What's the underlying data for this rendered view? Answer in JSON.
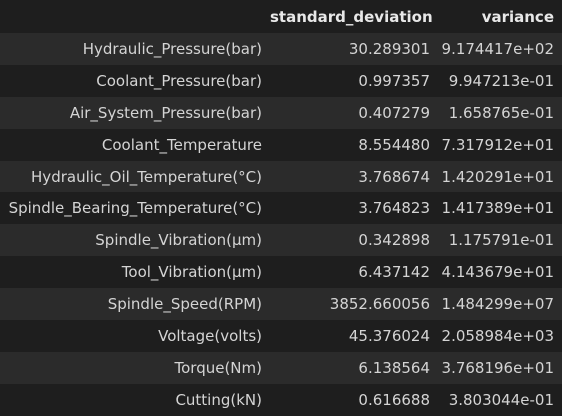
{
  "table": {
    "corner": "",
    "columns": [
      "standard_deviation",
      "variance"
    ],
    "rows": [
      {
        "label": "Hydraulic_Pressure(bar)",
        "std": "30.289301",
        "var": "9.174417e+02"
      },
      {
        "label": "Coolant_Pressure(bar)",
        "std": "0.997357",
        "var": "9.947213e-01"
      },
      {
        "label": "Air_System_Pressure(bar)",
        "std": "0.407279",
        "var": "1.658765e-01"
      },
      {
        "label": "Coolant_Temperature",
        "std": "8.554480",
        "var": "7.317912e+01"
      },
      {
        "label": "Hydraulic_Oil_Temperature(°C)",
        "std": "3.768674",
        "var": "1.420291e+01"
      },
      {
        "label": "Spindle_Bearing_Temperature(°C)",
        "std": "3.764823",
        "var": "1.417389e+01"
      },
      {
        "label": "Spindle_Vibration(µm)",
        "std": "0.342898",
        "var": "1.175791e-01"
      },
      {
        "label": "Tool_Vibration(µm)",
        "std": "6.437142",
        "var": "4.143679e+01"
      },
      {
        "label": "Spindle_Speed(RPM)",
        "std": "3852.660056",
        "var": "1.484299e+07"
      },
      {
        "label": "Voltage(volts)",
        "std": "45.376024",
        "var": "2.058984e+03"
      },
      {
        "label": "Torque(Nm)",
        "std": "6.138564",
        "var": "3.768196e+01"
      },
      {
        "label": "Cutting(kN)",
        "std": "0.616688",
        "var": "3.803044e-01"
      }
    ]
  },
  "colors": {
    "background": "#1e1e1e",
    "row_stripe": "#2b2b2b",
    "text": "#d4d4d4"
  }
}
